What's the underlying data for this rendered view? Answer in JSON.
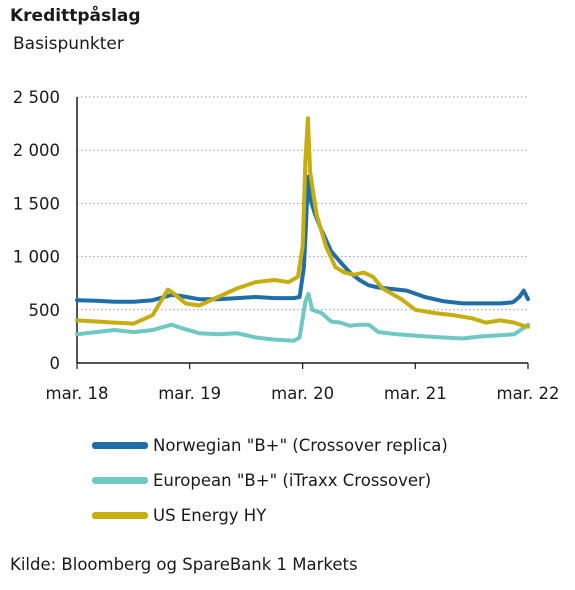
{
  "header": {
    "title": "Kredittpåslag",
    "subtitle": "Basispunkter"
  },
  "source": "Kilde: Bloomberg og SpareBank 1 Markets",
  "chart_data": {
    "type": "line",
    "title": "Kredittpåslag",
    "ylabel": "Basispunkter",
    "ylim": [
      0,
      2500
    ],
    "xlim": [
      "2018-03",
      "2022-03"
    ],
    "yticks": [
      0,
      500,
      1000,
      1500,
      2000,
      2500
    ],
    "ytick_labels": [
      "0",
      "500",
      "1 000",
      "1 500",
      "2 000",
      "2 500"
    ],
    "xticks": [
      "2018-03",
      "2019-03",
      "2020-03",
      "2021-03",
      "2022-03"
    ],
    "xtick_labels": [
      "mar. 18",
      "mar. 19",
      "mar. 20",
      "mar. 21",
      "mar. 22"
    ],
    "grid": "horizontal dotted",
    "legend_position": "below",
    "series": [
      {
        "name": "Norwegian \"B+\" (Crossover replica)",
        "color": "#1f6ea8",
        "points": [
          [
            "2018-03-01",
            590
          ],
          [
            "2018-05-01",
            585
          ],
          [
            "2018-07-01",
            575
          ],
          [
            "2018-09-01",
            575
          ],
          [
            "2018-11-01",
            590
          ],
          [
            "2019-01-01",
            640
          ],
          [
            "2019-02-01",
            630
          ],
          [
            "2019-04-01",
            600
          ],
          [
            "2019-06-01",
            600
          ],
          [
            "2019-08-01",
            610
          ],
          [
            "2019-10-01",
            620
          ],
          [
            "2019-12-01",
            610
          ],
          [
            "2020-02-01",
            610
          ],
          [
            "2020-02-20",
            620
          ],
          [
            "2020-03-05",
            900
          ],
          [
            "2020-03-12",
            1300
          ],
          [
            "2020-03-18",
            1750
          ],
          [
            "2020-03-25",
            1550
          ],
          [
            "2020-04-10",
            1400
          ],
          [
            "2020-05-01",
            1250
          ],
          [
            "2020-06-01",
            1050
          ],
          [
            "2020-07-01",
            950
          ],
          [
            "2020-08-01",
            850
          ],
          [
            "2020-09-01",
            780
          ],
          [
            "2020-10-01",
            730
          ],
          [
            "2020-11-01",
            710
          ],
          [
            "2020-12-01",
            700
          ],
          [
            "2021-02-01",
            680
          ],
          [
            "2021-04-01",
            620
          ],
          [
            "2021-06-01",
            580
          ],
          [
            "2021-08-01",
            560
          ],
          [
            "2021-10-01",
            560
          ],
          [
            "2021-12-01",
            560
          ],
          [
            "2022-01-10",
            570
          ],
          [
            "2022-02-01",
            620
          ],
          [
            "2022-02-15",
            680
          ],
          [
            "2022-03-01",
            600
          ]
        ]
      },
      {
        "name": "European \"B+\" (iTraxx Crossover)",
        "color": "#6fc8c4",
        "points": [
          [
            "2018-03-01",
            270
          ],
          [
            "2018-05-01",
            290
          ],
          [
            "2018-07-01",
            310
          ],
          [
            "2018-09-01",
            290
          ],
          [
            "2018-11-01",
            310
          ],
          [
            "2019-01-01",
            360
          ],
          [
            "2019-02-01",
            330
          ],
          [
            "2019-04-01",
            280
          ],
          [
            "2019-06-01",
            270
          ],
          [
            "2019-08-01",
            280
          ],
          [
            "2019-10-01",
            240
          ],
          [
            "2019-12-01",
            220
          ],
          [
            "2020-02-01",
            210
          ],
          [
            "2020-02-20",
            240
          ],
          [
            "2020-03-10",
            580
          ],
          [
            "2020-03-20",
            650
          ],
          [
            "2020-04-01",
            500
          ],
          [
            "2020-05-01",
            470
          ],
          [
            "2020-06-01",
            390
          ],
          [
            "2020-07-01",
            380
          ],
          [
            "2020-08-01",
            350
          ],
          [
            "2020-09-01",
            360
          ],
          [
            "2020-10-01",
            360
          ],
          [
            "2020-11-01",
            290
          ],
          [
            "2021-01-01",
            270
          ],
          [
            "2021-04-01",
            250
          ],
          [
            "2021-06-01",
            240
          ],
          [
            "2021-08-01",
            230
          ],
          [
            "2021-10-01",
            250
          ],
          [
            "2021-12-01",
            260
          ],
          [
            "2022-01-15",
            270
          ],
          [
            "2022-02-15",
            330
          ],
          [
            "2022-03-01",
            360
          ]
        ]
      },
      {
        "name": "US Energy HY",
        "color": "#c6ad12",
        "points": [
          [
            "2018-03-01",
            400
          ],
          [
            "2018-05-01",
            390
          ],
          [
            "2018-07-01",
            380
          ],
          [
            "2018-09-01",
            370
          ],
          [
            "2018-11-01",
            450
          ],
          [
            "2018-12-20",
            690
          ],
          [
            "2019-01-10",
            650
          ],
          [
            "2019-02-15",
            560
          ],
          [
            "2019-04-01",
            540
          ],
          [
            "2019-06-01",
            620
          ],
          [
            "2019-08-01",
            700
          ],
          [
            "2019-10-01",
            760
          ],
          [
            "2019-12-01",
            780
          ],
          [
            "2020-01-15",
            760
          ],
          [
            "2020-02-15",
            810
          ],
          [
            "2020-03-01",
            1100
          ],
          [
            "2020-03-10",
            1900
          ],
          [
            "2020-03-18",
            2300
          ],
          [
            "2020-03-25",
            1800
          ],
          [
            "2020-04-15",
            1400
          ],
          [
            "2020-05-15",
            1100
          ],
          [
            "2020-06-15",
            900
          ],
          [
            "2020-07-15",
            850
          ],
          [
            "2020-08-15",
            830
          ],
          [
            "2020-09-15",
            850
          ],
          [
            "2020-10-15",
            810
          ],
          [
            "2020-11-15",
            700
          ],
          [
            "2020-12-15",
            650
          ],
          [
            "2021-01-15",
            600
          ],
          [
            "2021-03-01",
            500
          ],
          [
            "2021-05-01",
            470
          ],
          [
            "2021-07-01",
            450
          ],
          [
            "2021-09-01",
            420
          ],
          [
            "2021-10-15",
            380
          ],
          [
            "2021-12-01",
            400
          ],
          [
            "2022-01-15",
            380
          ],
          [
            "2022-02-15",
            350
          ],
          [
            "2022-03-01",
            340
          ]
        ]
      }
    ]
  }
}
